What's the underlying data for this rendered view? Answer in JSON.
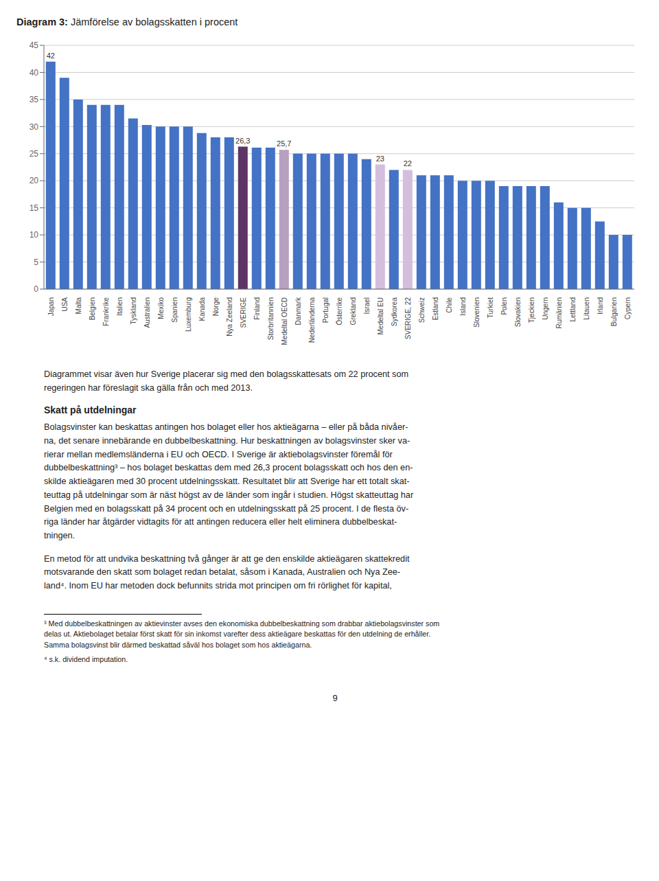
{
  "chart_data": {
    "type": "bar",
    "title": "Diagram 3: Jämförelse av bolagsskatten i procent",
    "categories": [
      "Japan",
      "USA",
      "Malta",
      "Belgien",
      "Frankrike",
      "Italien",
      "Tyskland",
      "Australien",
      "Mexiko",
      "Spanien",
      "Luxemburg",
      "Kanada",
      "Norge",
      "Nya Zeeland",
      "SVERIGE",
      "Finland",
      "Storbritannien",
      "Medeltal OECD",
      "Danmark",
      "Nederländerna",
      "Portugal",
      "Österrike",
      "Grekland",
      "Israel",
      "Medeltal EU",
      "Sydkorea",
      "SVERIGE, 22",
      "Schweiz",
      "Estland",
      "Chile",
      "Island",
      "Slovenien",
      "Turkiet",
      "Polen",
      "Slovakien",
      "Tjeckien",
      "Ungern",
      "Rumänien",
      "Lettland",
      "Litauen",
      "Irland",
      "Bulgarien",
      "Cypern"
    ],
    "values": [
      42,
      39,
      35,
      34,
      34,
      34,
      31.5,
      30.3,
      30,
      30,
      30,
      28.8,
      28,
      28,
      26.3,
      26.1,
      26.1,
      25.7,
      25,
      25,
      25,
      25,
      25,
      24,
      23,
      22,
      22,
      21,
      21,
      21,
      20,
      20,
      20,
      19,
      19,
      19,
      19,
      16,
      15,
      15,
      12.5,
      10,
      10
    ],
    "value_labels": [
      "42",
      null,
      null,
      null,
      null,
      null,
      null,
      null,
      null,
      null,
      null,
      null,
      null,
      null,
      "26,3",
      null,
      null,
      "25,7",
      null,
      null,
      null,
      null,
      null,
      null,
      "23",
      null,
      "22",
      null,
      null,
      null,
      null,
      null,
      null,
      null,
      null,
      null,
      null,
      null,
      null,
      null,
      null,
      null,
      null
    ],
    "colors": [
      "#4472c4",
      "#4472c4",
      "#4472c4",
      "#4472c4",
      "#4472c4",
      "#4472c4",
      "#4472c4",
      "#4472c4",
      "#4472c4",
      "#4472c4",
      "#4472c4",
      "#4472c4",
      "#4472c4",
      "#4472c4",
      "#5c3566",
      "#4472c4",
      "#4472c4",
      "#b8a0c0",
      "#4472c4",
      "#4472c4",
      "#4472c4",
      "#4472c4",
      "#4472c4",
      "#4472c4",
      "#d4bede",
      "#4472c4",
      "#d4bede",
      "#4472c4",
      "#4472c4",
      "#4472c4",
      "#4472c4",
      "#4472c4",
      "#4472c4",
      "#4472c4",
      "#4472c4",
      "#4472c4",
      "#4472c4",
      "#4472c4",
      "#4472c4",
      "#4472c4",
      "#4472c4",
      "#4472c4",
      "#4472c4"
    ],
    "ylim": [
      0,
      45
    ],
    "yticks": [
      0,
      5,
      10,
      15,
      20,
      25,
      30,
      35,
      40,
      45
    ],
    "grid": true,
    "annotations": [
      "Diagrammet visar även hur Sverige placerar sig med den bolagsskattesats om 22 procent som\nregeringen har föreslagit ska gälla från och med 2013.",
      "Skatt på utdelningar",
      "Bolagsvinster kan beskattas antingen hos bolaget eller hos aktieägarna – eller på båda nivåer-\nna, det senare innebärande en dubbelbeskattning. Hur beskattningen av bolagsvinster sker va-\nrierar mellan medlemsländerna i EU och OECD. I Sverige är aktiebolagsvinster föremål för\ndubbelbeskattning³ – hos bolaget beskattas dem med 26,3 procent bolagsskatt och hos den en-\nskilde aktieägaren med 30 procent utdelningsskatt. Resultatet blir att Sverige har ett totalt skat-\nteuttag på utdelningar som är näst högst av de länder som ingår i studien. Högst skatteuttag har\nBelgien med en bolagsskatt på 34 procent och en utdelningsskatt på 25 procent. I de flesta öv-\nriga länder har åtgärder vidtagits för att antingen reducera eller helt eliminera dubbelbeskat-\ntningen.",
      "En metod för att undvika beskattning två gånger är att ge den enskilde aktieägaren skattekredit\nmotsvarande den skatt som bolaget redan betalat, såsom i Kanada, Australien och Nya Zee-\nland⁴. Inom EU har metoden dock befunnits strida mot principen om fri rörlighet för kapital,",
      "³ Med dubbelbeskattningen av aktievinster avses den ekonomiska dubbelbeskattning som drabbar aktiebolagsvinster som\ndelas ut. Aktiebolaget betalar först skatt för sin inkomst varefter dess aktieägare beskattas för den utdelning de erhåller.\nSamma bolagsvinst blir därmed beskattad såväl hos bolaget som hos aktieägarna.",
      "⁴ s.k. dividend imputation.",
      "9"
    ]
  }
}
